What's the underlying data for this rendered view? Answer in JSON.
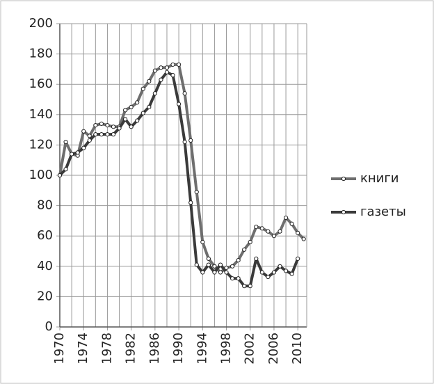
{
  "chart_data": {
    "type": "line",
    "x": [
      1970,
      1971,
      1972,
      1973,
      1974,
      1975,
      1976,
      1977,
      1978,
      1979,
      1980,
      1981,
      1982,
      1983,
      1984,
      1985,
      1986,
      1987,
      1988,
      1989,
      1990,
      1991,
      1992,
      1993,
      1994,
      1995,
      1996,
      1997,
      1998,
      1999,
      2000,
      2001,
      2002,
      2003,
      2004,
      2005,
      2006,
      2007,
      2008,
      2009,
      2010,
      2011
    ],
    "series": [
      {
        "name": "книги",
        "color": "#6e6e6e",
        "values": [
          100,
          122,
          114,
          113,
          129,
          126,
          133,
          134,
          133,
          132,
          132,
          143,
          145,
          148,
          157,
          162,
          169,
          171,
          171,
          173,
          173,
          154,
          123,
          89,
          56,
          45,
          40,
          36,
          39,
          40,
          44,
          51,
          56,
          66,
          65,
          63,
          60,
          63,
          72,
          68,
          62,
          58
        ]
      },
      {
        "name": "газеты",
        "color": "#3a3a3a",
        "values": [
          100,
          104,
          114,
          115,
          118,
          123,
          127,
          127,
          127,
          127,
          131,
          137,
          132,
          136,
          141,
          145,
          154,
          163,
          168,
          166,
          147,
          122,
          82,
          41,
          36,
          41,
          36,
          41,
          36,
          32,
          32,
          27,
          27,
          45,
          36,
          33,
          36,
          40,
          37,
          35,
          45,
          null
        ]
      }
    ],
    "xlim": [
      1970,
      2011.5
    ],
    "xticks": [
      1970,
      1974,
      1978,
      1982,
      1986,
      1990,
      1994,
      1998,
      2002,
      2006,
      2010
    ],
    "xminorticks": [
      1972,
      1976,
      1980,
      1984,
      1988,
      1992,
      1996,
      2000,
      2004,
      2008
    ],
    "ylim": [
      0,
      200
    ],
    "yticks": [
      0,
      20,
      40,
      60,
      80,
      100,
      120,
      140,
      160,
      180,
      200
    ],
    "grid": true,
    "legend": "right"
  }
}
